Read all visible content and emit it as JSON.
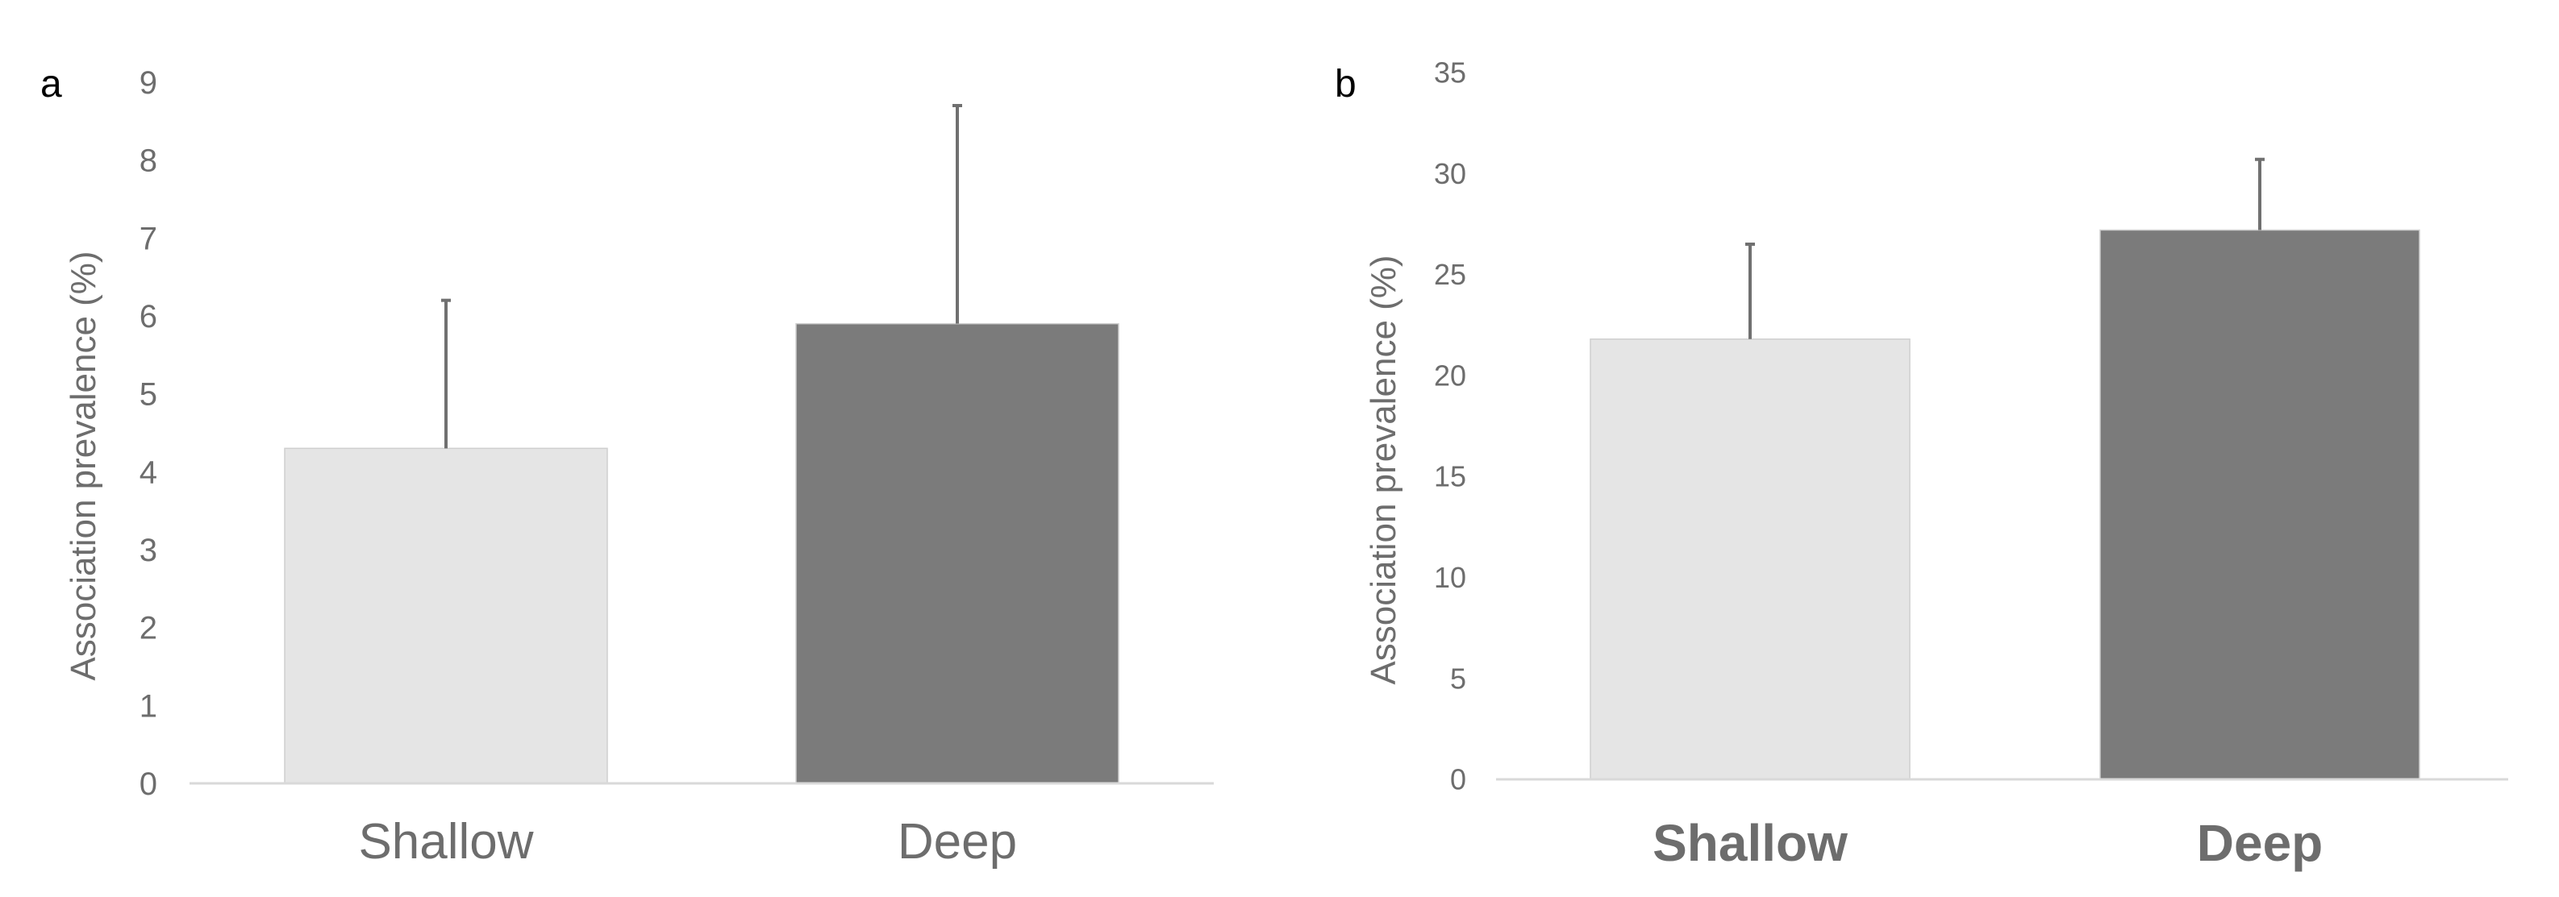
{
  "panels": [
    "a",
    "b"
  ],
  "chart_data": [
    {
      "type": "bar",
      "panel_label": "a",
      "categories": [
        "Shallow",
        "Deep"
      ],
      "values": [
        4.3,
        5.9
      ],
      "error_plus": [
        1.9,
        2.8
      ],
      "colors": [
        "#e5e5e5",
        "#7b7b7b"
      ],
      "ylabel": "Association prevalence (%)",
      "xlabel": "",
      "ylim": [
        0,
        9
      ],
      "yticks": [
        0,
        1,
        2,
        3,
        4,
        5,
        6,
        7,
        8,
        9
      ],
      "category_label_weight": "normal",
      "grid": false
    },
    {
      "type": "bar",
      "panel_label": "b",
      "categories": [
        "Shallow",
        "Deep"
      ],
      "values": [
        21.8,
        27.2
      ],
      "error_plus": [
        4.7,
        3.5
      ],
      "colors": [
        "#e5e5e5",
        "#7b7b7b"
      ],
      "ylabel": "Association prevalence (%)",
      "xlabel": "",
      "ylim": [
        0,
        35
      ],
      "yticks": [
        0,
        5,
        10,
        15,
        20,
        25,
        30,
        35
      ],
      "category_label_weight": "bold",
      "grid": false
    }
  ]
}
